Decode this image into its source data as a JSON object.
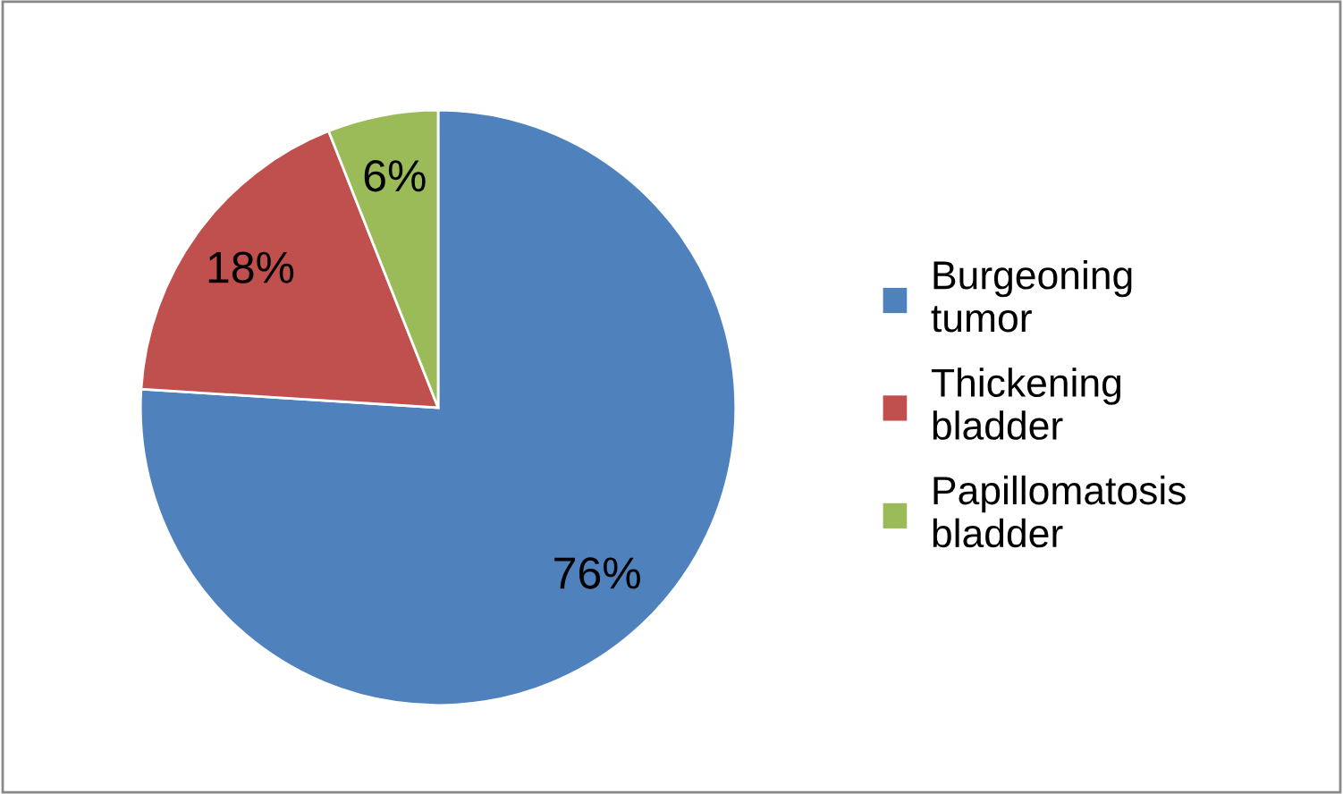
{
  "chart_data": {
    "type": "pie",
    "categories": [
      "Burgeoning tumor",
      "Thickening bladder",
      "Papillomatosis bladder"
    ],
    "values": [
      76,
      18,
      6
    ],
    "colors": [
      "#4f81bd",
      "#c0504d",
      "#9bbb59"
    ],
    "value_labels": [
      "76%",
      "18%",
      "6%"
    ],
    "legend": "right"
  }
}
